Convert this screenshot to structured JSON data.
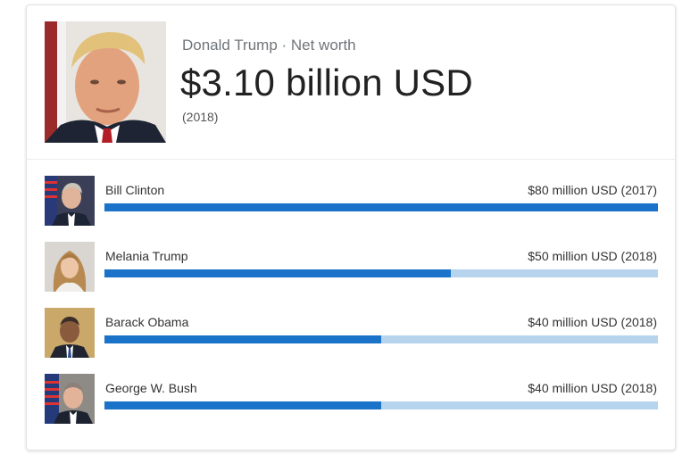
{
  "header": {
    "subtitle": "Donald Trump · Net worth",
    "value": "$3.10 billion USD",
    "year": "(2018)",
    "photo_icon": "portrait-photo"
  },
  "comparisons": [
    {
      "name": "Bill Clinton",
      "amount": "$80 million USD (2017)",
      "fraction": 1.0,
      "photo": "portrait-photo"
    },
    {
      "name": "Melania Trump",
      "amount": "$50 million USD (2018)",
      "fraction": 0.625,
      "photo": "portrait-photo"
    },
    {
      "name": "Barack Obama",
      "amount": "$40 million USD (2018)",
      "fraction": 0.5,
      "photo": "portrait-photo"
    },
    {
      "name": "George W. Bush",
      "amount": "$40 million USD (2018)",
      "fraction": 0.5,
      "photo": "portrait-photo"
    }
  ],
  "colors": {
    "bar_fill": "#1a73c9",
    "bar_track": "#b6d4ee"
  }
}
